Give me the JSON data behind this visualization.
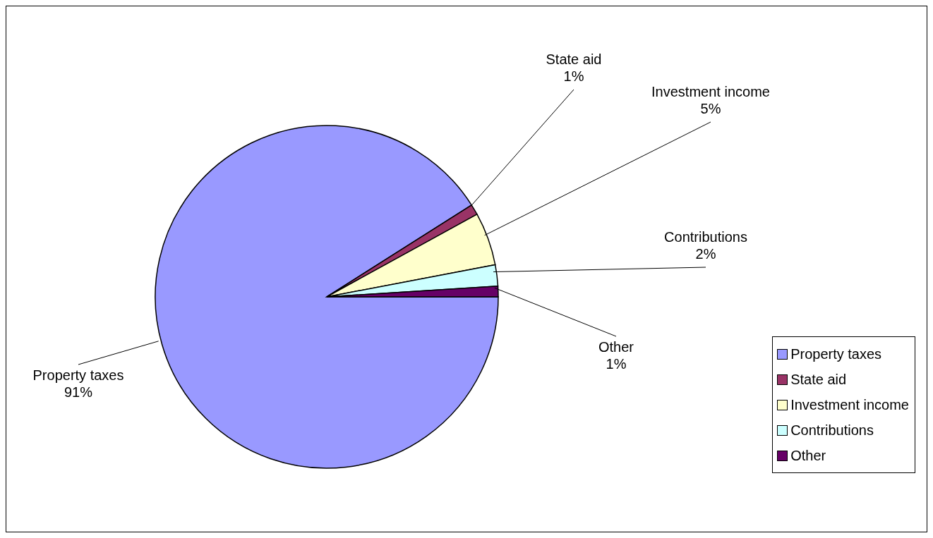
{
  "chart_data": {
    "type": "pie",
    "categories": [
      "Property taxes",
      "State aid",
      "Investment income",
      "Contributions",
      "Other"
    ],
    "values": [
      91,
      1,
      5,
      2,
      1
    ],
    "colors": [
      "#9999ff",
      "#993366",
      "#ffffcc",
      "#ccffff",
      "#660066"
    ],
    "value_labels": [
      "91%",
      "1%",
      "5%",
      "2%",
      "1%"
    ],
    "legend": "right"
  }
}
